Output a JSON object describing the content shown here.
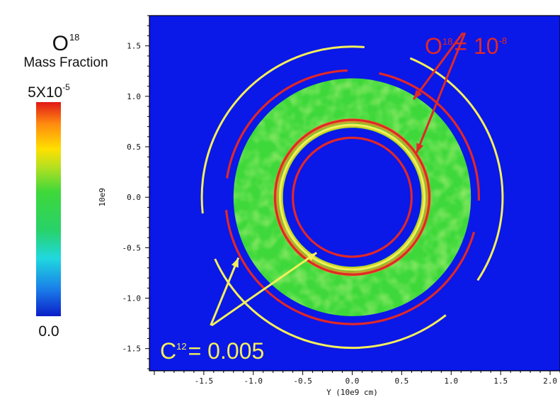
{
  "colorbar": {
    "species": "O",
    "isotope": "18",
    "quantity": "Mass Fraction",
    "max_label": "5X10",
    "max_exponent": "-5",
    "min_label": "0.0",
    "colors": [
      "#0a1ec8",
      "#1a7ae8",
      "#20d8e0",
      "#28d26a",
      "#3ed83a",
      "#b8e020",
      "#ffe000",
      "#ff8a10",
      "#e01818"
    ]
  },
  "chart_data": {
    "type": "heatmap",
    "xlabel": "Y (10e9 cm)",
    "ylabel": "10e9",
    "xlim": [
      -2.05,
      2.1
    ],
    "ylim": [
      -1.72,
      1.8
    ],
    "xticks": [
      "-1.5",
      "-1.0",
      "-0.5",
      "0.0",
      "0.5",
      "1.0",
      "1.5",
      "2.0"
    ],
    "yticks": [
      "1.5",
      "1.0",
      "0.5",
      "0.0",
      "-0.5",
      "-1.0",
      "-1.5"
    ],
    "background_color": "#0a18e8",
    "field": {
      "description": "ring of O18 mass fraction",
      "inner_radius": 0.7,
      "outer_radius": 1.2,
      "color": "#3ed83a"
    },
    "contours": [
      {
        "label_text": "O",
        "label_sup": "18",
        "label_eq": "= 10",
        "label_eq_sup": "-8",
        "level": "1e-8",
        "color": "#e02828",
        "radii": [
          0.6,
          0.78,
          1.28
        ]
      },
      {
        "label_text": "C",
        "label_sup": "12",
        "label_eq": "= 0.005",
        "level": "0.005",
        "color": "#f4ef5a",
        "radii": [
          0.73,
          1.52
        ]
      }
    ],
    "annotation_arrows": [
      {
        "from": [
          1.12,
          1.63
        ],
        "to": [
          0.62,
          0.97
        ],
        "color": "#e02828"
      },
      {
        "from": [
          1.14,
          1.63
        ],
        "to": [
          0.65,
          0.44
        ],
        "color": "#e02828"
      },
      {
        "from": [
          -1.43,
          -1.27
        ],
        "to": [
          -1.15,
          -0.6
        ],
        "color": "#f4ef5a"
      },
      {
        "from": [
          -1.42,
          -1.27
        ],
        "to": [
          -0.36,
          -0.55
        ],
        "color": "#f4ef5a"
      }
    ]
  }
}
